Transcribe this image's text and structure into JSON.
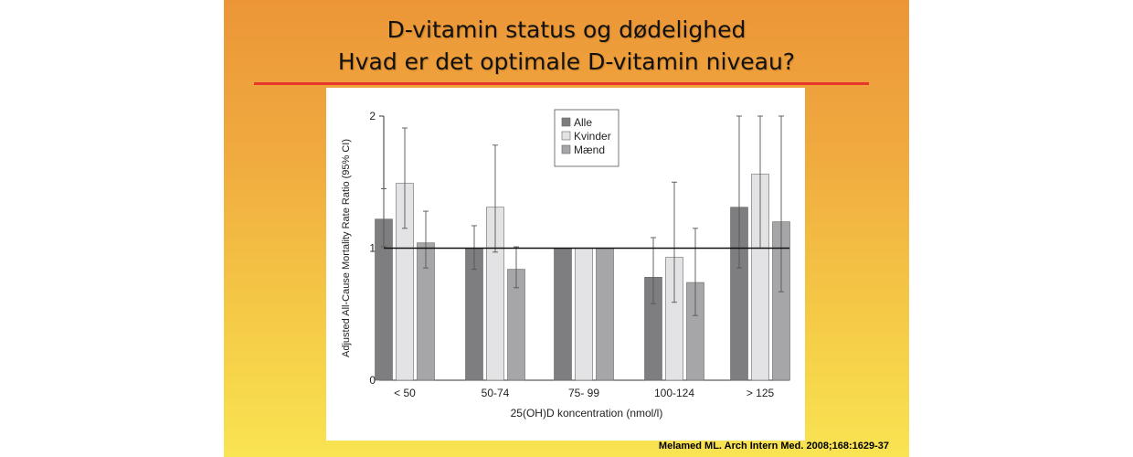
{
  "slide": {
    "title_line1": "D-vitamin status og dødelighed",
    "title_line2": "Hvad er det optimale D-vitamin niveau?",
    "citation": "Melamed ML. Arch Intern Med. 2008;168:1629-37"
  },
  "chart_data": {
    "type": "bar",
    "xlabel": "25(OH)D koncentration (nmol/l)",
    "ylabel": "Adjusted All-Cause Mortality Rate Ratio (95% CI)",
    "ylim": [
      0,
      2
    ],
    "yticks": [
      0,
      1,
      2
    ],
    "reference_line": 1,
    "legend_position": "top-center",
    "categories": [
      "< 50",
      "50-74",
      "75- 99",
      "100-124",
      "> 125"
    ],
    "series": [
      {
        "name": "Alle",
        "color": "#7e7e80",
        "values": [
          1.22,
          1.0,
          1.0,
          0.78,
          1.31
        ],
        "ci_low": [
          1.01,
          0.84,
          1.0,
          0.58,
          0.85
        ],
        "ci_high": [
          1.45,
          1.17,
          1.0,
          1.08,
          2.0
        ]
      },
      {
        "name": "Kvinder",
        "color": "#e3e3e5",
        "values": [
          1.49,
          1.31,
          1.0,
          0.93,
          1.56
        ],
        "ci_low": [
          1.15,
          0.97,
          1.0,
          0.59,
          1.0
        ],
        "ci_high": [
          1.91,
          1.78,
          1.0,
          1.5,
          2.0
        ]
      },
      {
        "name": "Mænd",
        "color": "#a6a6a8",
        "values": [
          1.04,
          0.84,
          1.0,
          0.74,
          1.2
        ],
        "ci_low": [
          0.85,
          0.7,
          1.0,
          0.49,
          0.67
        ],
        "ci_high": [
          1.28,
          1.01,
          1.0,
          1.15,
          2.0
        ]
      }
    ]
  }
}
